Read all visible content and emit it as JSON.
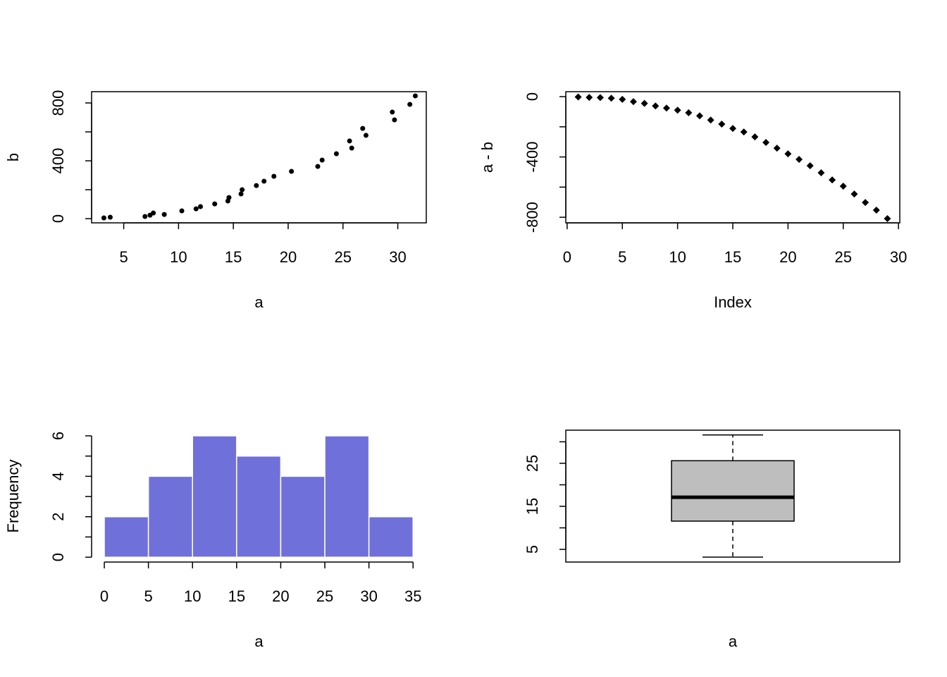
{
  "chart_data": [
    {
      "type": "scatter",
      "marker": "circle",
      "color": "#000000",
      "frame": true,
      "x": [
        3.19,
        3.77,
        6.94,
        7.4,
        7.7,
        8.7,
        10.3,
        11.6,
        12.0,
        13.3,
        14.5,
        14.6,
        15.7,
        15.8,
        17.1,
        17.8,
        18.7,
        20.3,
        22.7,
        23.1,
        24.4,
        25.6,
        25.8,
        26.8,
        27.1,
        29.5,
        29.7,
        31.1,
        31.6
      ],
      "values": [
        5,
        10,
        15,
        24,
        39,
        29,
        54,
        68,
        83,
        102,
        122,
        146,
        171,
        200,
        229,
        259,
        293,
        327,
        361,
        405,
        449,
        537,
        488,
        624,
        576,
        737,
        683,
        790,
        849
      ],
      "xlabel": "a",
      "ylabel": "b",
      "xlim": [
        2.07,
        32.6
      ],
      "ylim": [
        -29,
        878
      ],
      "xticks": [
        5,
        10,
        15,
        20,
        25,
        30
      ],
      "yticks": [
        0,
        400,
        800
      ],
      "minor_yticks": [
        200,
        600
      ]
    },
    {
      "type": "scatter",
      "marker": "diamond",
      "color": "#000000",
      "frame": true,
      "x": [
        1,
        2,
        3,
        4,
        5,
        6,
        7,
        8,
        9,
        10,
        11,
        12,
        13,
        14,
        15,
        16,
        17,
        18,
        19,
        20,
        21,
        22,
        23,
        24,
        25,
        26,
        27,
        28,
        29
      ],
      "values": [
        -2,
        -5,
        -6,
        -10,
        -18,
        -33,
        -45,
        -62,
        -76,
        -90,
        -107,
        -127,
        -155,
        -182,
        -211,
        -234,
        -267,
        -304,
        -342,
        -379,
        -416,
        -458,
        -505,
        -552,
        -594,
        -646,
        -702,
        -753,
        -809
      ],
      "xlabel": "Index",
      "ylabel": "a - b",
      "xlim": [
        -0.12,
        30.12
      ],
      "ylim": [
        -837,
        33
      ],
      "xticks": [
        0,
        5,
        10,
        15,
        20,
        25,
        30
      ],
      "yticks": [
        -800,
        -400,
        0
      ],
      "minor_yticks": [
        -600,
        -200
      ]
    },
    {
      "type": "histogram",
      "color": "#7070db",
      "frame": false,
      "bins": [
        0,
        5,
        10,
        15,
        20,
        25,
        30,
        35
      ],
      "values": [
        2,
        4,
        6,
        5,
        4,
        6,
        2
      ],
      "xlabel": "a",
      "ylabel": "Frequency",
      "xlim": [
        -1.44,
        36.5
      ],
      "ylim": [
        -0.24,
        6.28
      ],
      "xticks": [
        0,
        5,
        10,
        15,
        20,
        25,
        30,
        35
      ],
      "yticks": [
        0,
        2,
        4,
        6
      ],
      "minor_yticks": [
        1,
        3,
        5
      ]
    },
    {
      "type": "boxplot",
      "color": "#bebebe",
      "frame": true,
      "min": 3.2,
      "q1": 11.56,
      "median": 17.1,
      "q3": 25.6,
      "max": 31.6,
      "xlabel": "a",
      "ylim": [
        2.05,
        32.7
      ],
      "yticks": [
        5,
        15,
        25
      ],
      "minor_yticks": [
        10,
        20,
        30
      ]
    }
  ]
}
